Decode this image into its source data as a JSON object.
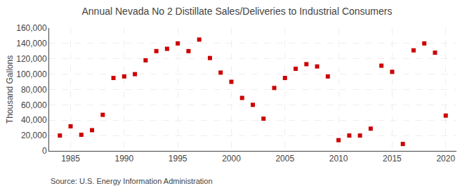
{
  "chart_data": {
    "type": "scatter",
    "title": "Annual Nevada No 2 Distillate Sales/Deliveries to Industrial Consumers",
    "ylabel": "Thousand Gallons",
    "annotations": [
      "Source: U.S. Energy Information Administration"
    ],
    "color": "#cc0000",
    "marker": "square",
    "grid": true,
    "xlim": [
      1983,
      2021
    ],
    "xticks": [
      1985,
      1990,
      1995,
      2000,
      2005,
      2010,
      2015,
      2020
    ],
    "ylim": [
      0,
      160000
    ],
    "yticks": [
      0,
      {
        "value": 20000,
        "label": "20,000"
      },
      {
        "value": 40000,
        "label": "40,000"
      },
      {
        "value": 60000,
        "label": "60,000"
      },
      {
        "value": 80000,
        "label": "80,000"
      },
      {
        "value": 100000,
        "label": "100,000"
      },
      {
        "value": 120000,
        "label": "120,000"
      },
      {
        "value": 140000,
        "label": "140,000"
      },
      {
        "value": 160000,
        "label": "160,000"
      }
    ],
    "x": [
      1984,
      1985,
      1986,
      1987,
      1988,
      1989,
      1990,
      1991,
      1992,
      1993,
      1994,
      1995,
      1996,
      1997,
      1998,
      1999,
      2000,
      2001,
      2002,
      2003,
      2004,
      2005,
      2006,
      2007,
      2008,
      2009,
      2010,
      2011,
      2012,
      2013,
      2014,
      2015,
      2016,
      2017,
      2018,
      2019,
      2020
    ],
    "values": [
      20000,
      32000,
      21000,
      27000,
      47000,
      95000,
      97000,
      100000,
      118000,
      130000,
      133000,
      140000,
      130000,
      145000,
      121000,
      102000,
      90000,
      69000,
      60000,
      42000,
      82000,
      95000,
      107000,
      113000,
      110000,
      97000,
      14000,
      20000,
      20000,
      29000,
      111000,
      103000,
      9000,
      131000,
      140000,
      128000,
      46000
    ]
  }
}
